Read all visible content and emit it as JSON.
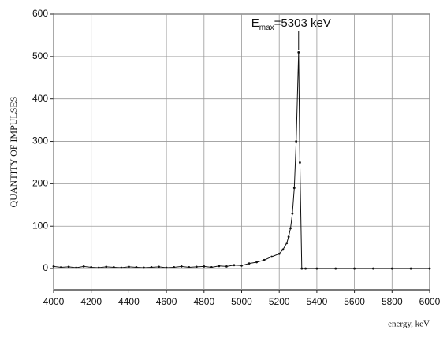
{
  "chart_data": {
    "type": "line",
    "annotation": {
      "main": "E",
      "sub": "max",
      "rest": "=5303 keV"
    },
    "ylabel": "QUANTITY OF IMPULSES",
    "xlabel": "energy, keV",
    "color": "#111111",
    "grid": true,
    "x": [
      4000,
      4040,
      4080,
      4120,
      4160,
      4200,
      4240,
      4280,
      4320,
      4360,
      4400,
      4440,
      4480,
      4520,
      4560,
      4600,
      4640,
      4680,
      4720,
      4760,
      4800,
      4840,
      4880,
      4920,
      4960,
      5000,
      5040,
      5080,
      5120,
      5160,
      5200,
      5220,
      5240,
      5250,
      5260,
      5270,
      5280,
      5290,
      5303,
      5310,
      5320,
      5340,
      5400,
      5500,
      5600,
      5700,
      5800,
      5900,
      6000
    ],
    "values": [
      5,
      3,
      4,
      2,
      5,
      3,
      2,
      4,
      3,
      2,
      4,
      3,
      2,
      3,
      4,
      2,
      3,
      5,
      3,
      4,
      5,
      3,
      6,
      5,
      8,
      7,
      12,
      15,
      20,
      28,
      35,
      45,
      60,
      75,
      95,
      130,
      190,
      300,
      510,
      250,
      0,
      0,
      0,
      0,
      0,
      0,
      0,
      0,
      0
    ],
    "xlim": [
      4000,
      6000
    ],
    "xticks": [
      4000,
      4200,
      4400,
      4600,
      4800,
      5000,
      5200,
      5400,
      5600,
      5800,
      6000
    ],
    "ylim": [
      -50,
      600
    ],
    "yticks": [
      0,
      100,
      200,
      300,
      400,
      500,
      600
    ]
  }
}
